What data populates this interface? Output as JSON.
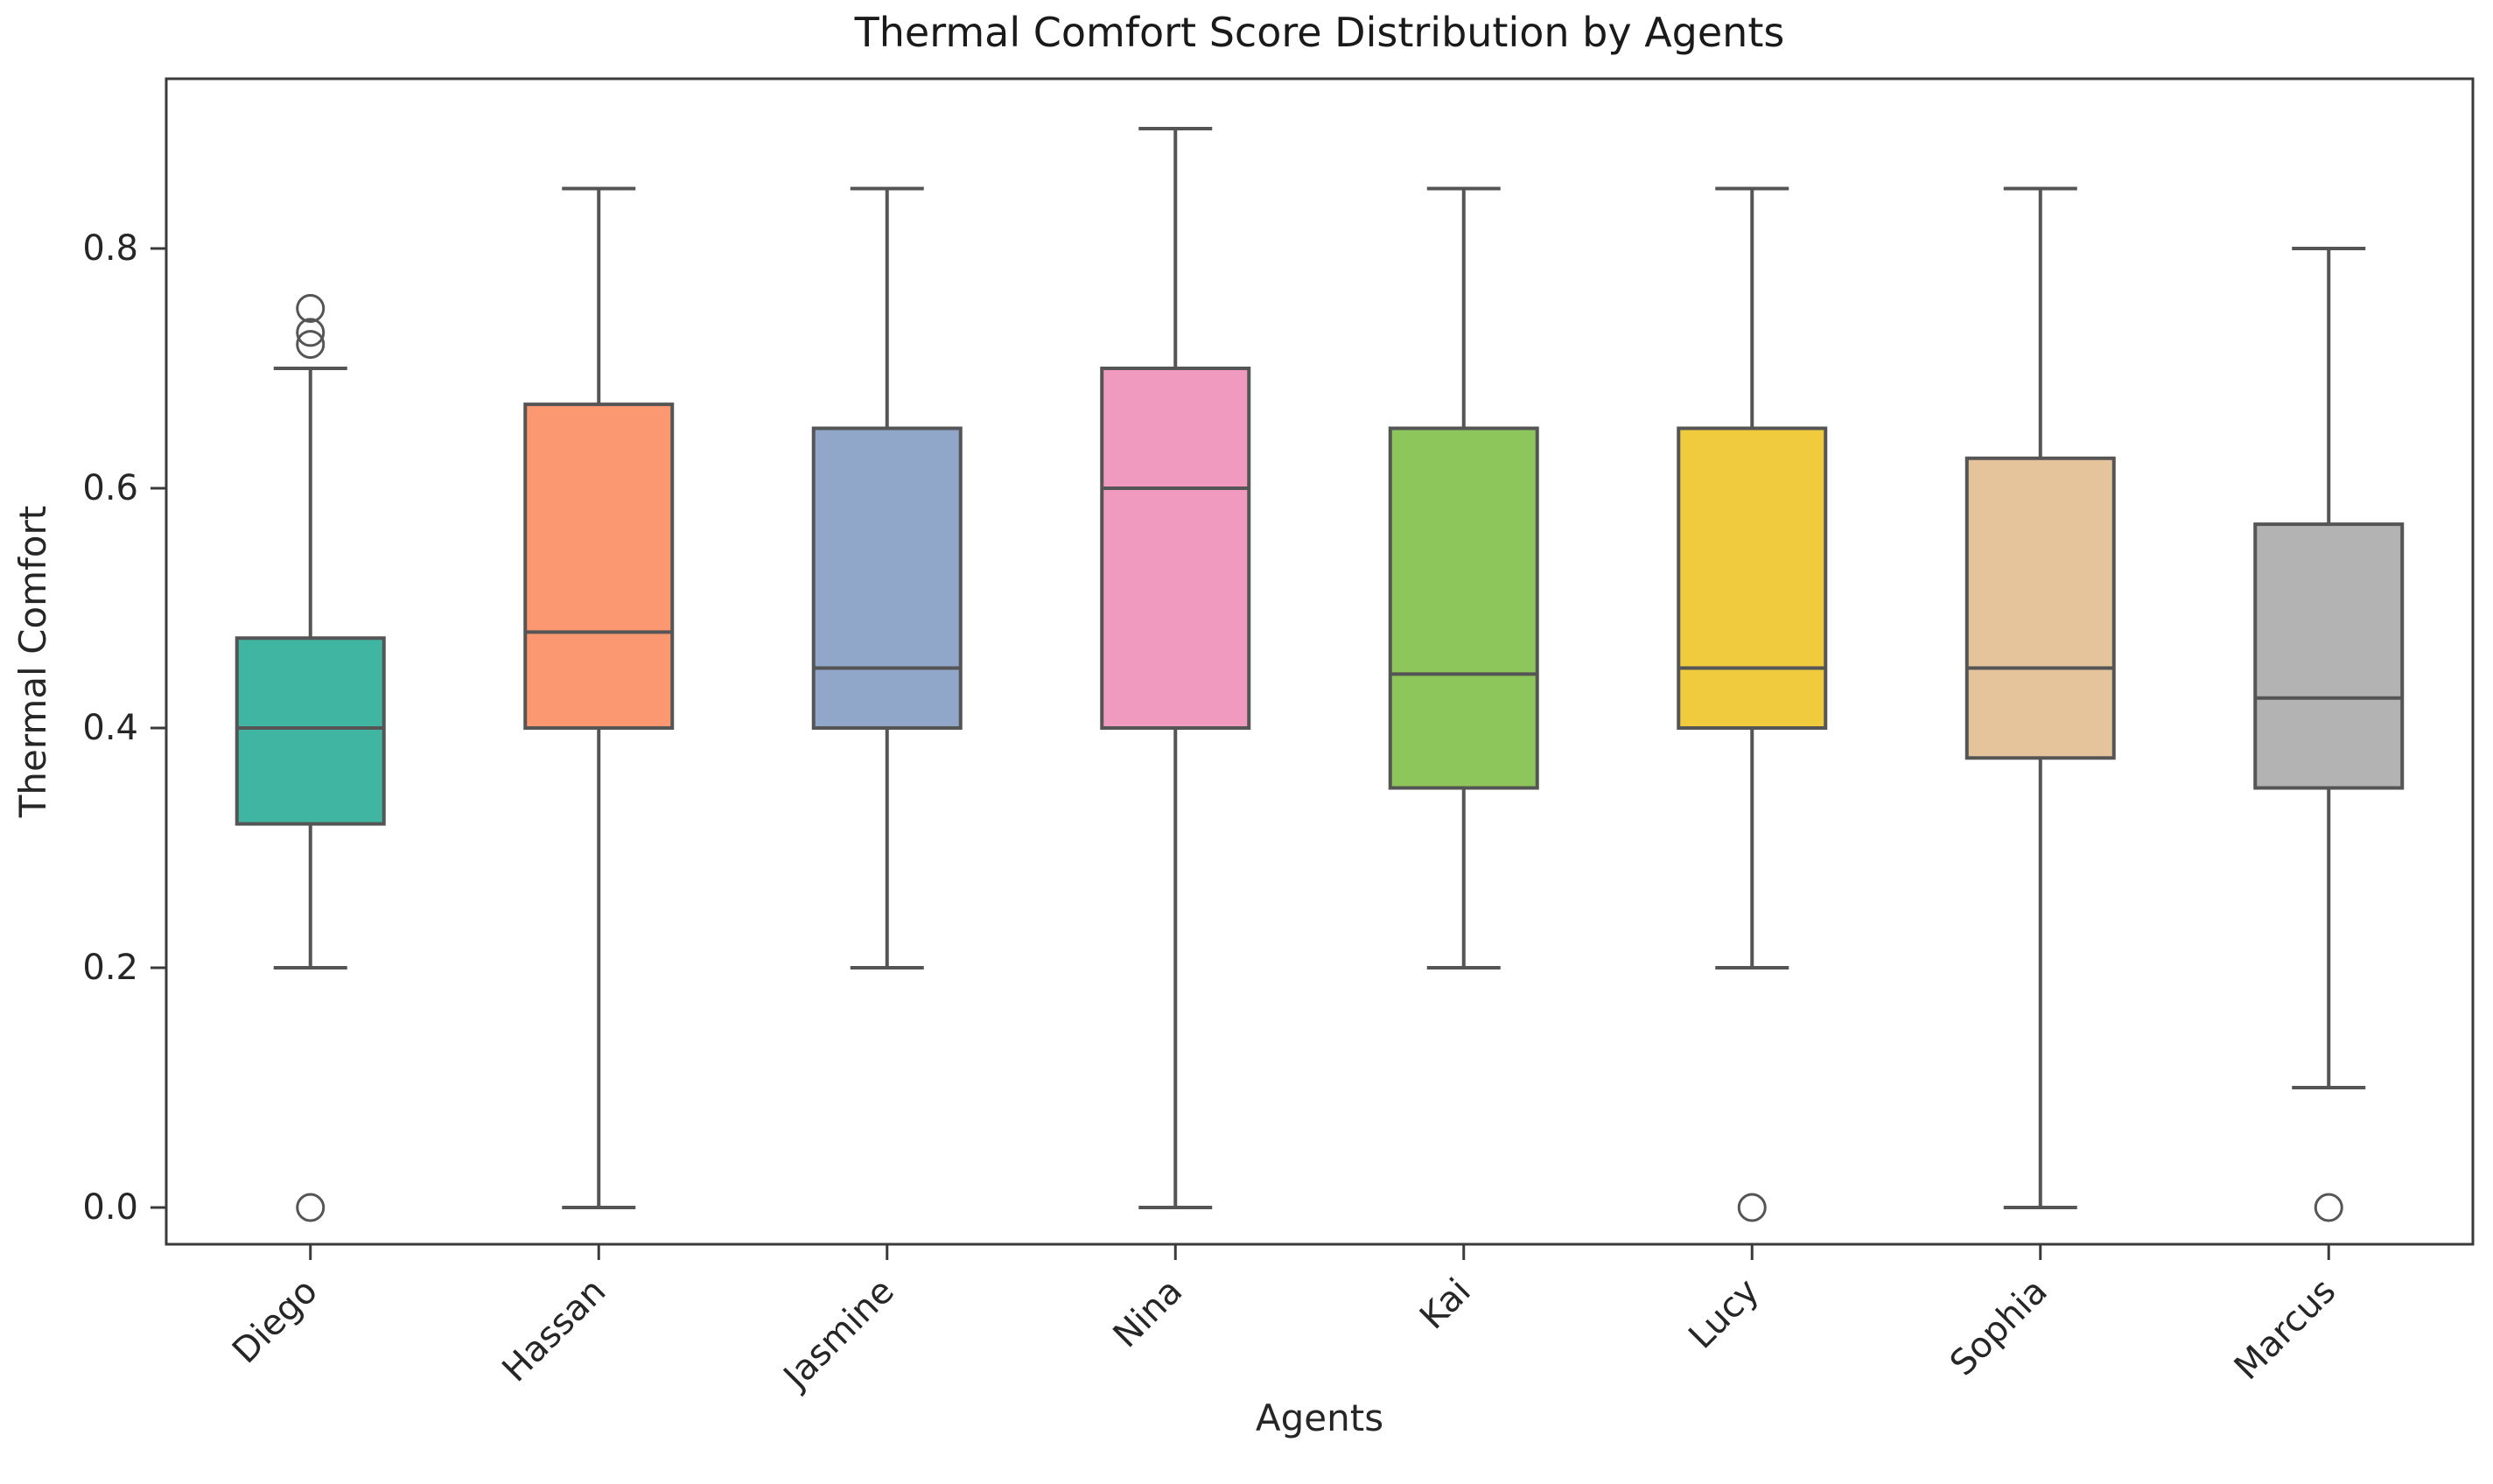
{
  "title": "Thermal Comfort Score Distribution by Agents",
  "xlabel": "Agents",
  "ylabel": "Thermal Comfort",
  "chart_data": {
    "type": "boxplot",
    "title": "Thermal Comfort Score Distribution by Agents",
    "xlabel": "Agents",
    "ylabel": "Thermal Comfort",
    "categories": [
      "Diego",
      "Hassan",
      "Jasmine",
      "Nina",
      "Kai",
      "Lucy",
      "Sophia",
      "Marcus"
    ],
    "yticks": [
      0.0,
      0.2,
      0.4,
      0.6,
      0.8
    ],
    "ylim": [
      -0.04,
      0.94
    ],
    "grid": false,
    "legend": "none",
    "background_color": "#ffffff",
    "box_edge_color": "#555555",
    "spine_color": "#3b3b3b",
    "tick_label_color": "#262626",
    "series": [
      {
        "name": "Diego",
        "whisker_low": 0.2,
        "q1": 0.32,
        "median": 0.4,
        "q3": 0.475,
        "whisker_high": 0.7,
        "outliers": [
          0.75,
          0.73,
          0.72,
          0.0
        ],
        "color": "#40b5a1"
      },
      {
        "name": "Hassan",
        "whisker_low": 0.0,
        "q1": 0.4,
        "median": 0.48,
        "q3": 0.67,
        "whisker_high": 0.85,
        "outliers": [],
        "color": "#fc9871"
      },
      {
        "name": "Jasmine",
        "whisker_low": 0.2,
        "q1": 0.4,
        "median": 0.45,
        "q3": 0.65,
        "whisker_high": 0.85,
        "outliers": [],
        "color": "#91a7ca"
      },
      {
        "name": "Nina",
        "whisker_low": 0.0,
        "q1": 0.4,
        "median": 0.6,
        "q3": 0.7,
        "whisker_high": 0.9,
        "outliers": [],
        "color": "#f09ac0"
      },
      {
        "name": "Kai",
        "whisker_low": 0.2,
        "q1": 0.35,
        "median": 0.445,
        "q3": 0.65,
        "whisker_high": 0.85,
        "outliers": [],
        "color": "#8dc65a"
      },
      {
        "name": "Lucy",
        "whisker_low": 0.2,
        "q1": 0.4,
        "median": 0.45,
        "q3": 0.65,
        "whisker_high": 0.85,
        "outliers": [
          0.0
        ],
        "color": "#f0cb3e"
      },
      {
        "name": "Sophia",
        "whisker_low": 0.0,
        "q1": 0.375,
        "median": 0.45,
        "q3": 0.625,
        "whisker_high": 0.85,
        "outliers": [],
        "color": "#e5c39b"
      },
      {
        "name": "Marcus",
        "whisker_low": 0.1,
        "q1": 0.35,
        "median": 0.425,
        "q3": 0.57,
        "whisker_high": 0.8,
        "outliers": [
          0.0
        ],
        "color": "#b3b3b3"
      }
    ]
  }
}
